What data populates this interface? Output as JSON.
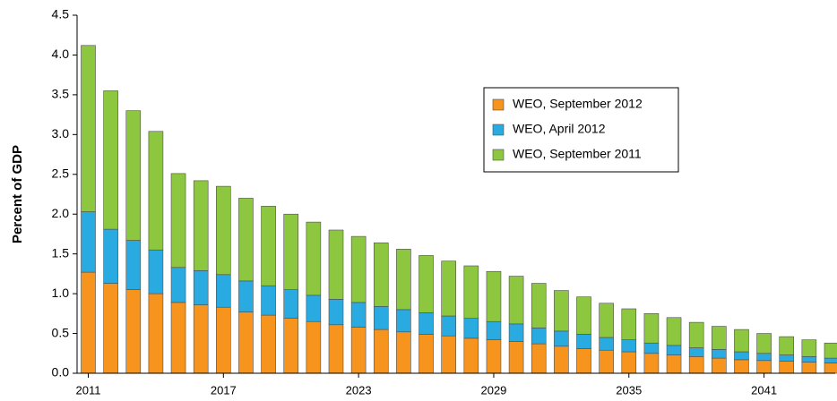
{
  "chart_data": {
    "type": "stacked_bar",
    "y_label": "Percent of GDP",
    "categories": [
      "2011",
      null,
      null,
      null,
      null,
      null,
      "2017",
      null,
      null,
      null,
      null,
      null,
      "2023",
      null,
      null,
      null,
      null,
      null,
      "2029",
      null,
      null,
      null,
      null,
      null,
      "2035",
      null,
      null,
      null,
      null,
      null,
      "2041",
      null,
      null,
      null
    ],
    "series": [
      {
        "name": "WEO, September 2012",
        "color": "#f7941d",
        "values": [
          1.27,
          1.13,
          1.05,
          1.0,
          0.89,
          0.86,
          0.83,
          0.77,
          0.73,
          0.69,
          0.65,
          0.61,
          0.58,
          0.55,
          0.52,
          0.49,
          0.47,
          0.44,
          0.42,
          0.4,
          0.37,
          0.34,
          0.31,
          0.29,
          0.27,
          0.25,
          0.23,
          0.21,
          0.19,
          0.17,
          0.16,
          0.15,
          0.14,
          0.13
        ]
      },
      {
        "name": "WEO, April 2012",
        "color": "#29abe2",
        "values": [
          0.76,
          0.68,
          0.62,
          0.55,
          0.44,
          0.43,
          0.41,
          0.39,
          0.37,
          0.36,
          0.33,
          0.32,
          0.31,
          0.29,
          0.28,
          0.27,
          0.25,
          0.25,
          0.23,
          0.22,
          0.2,
          0.19,
          0.18,
          0.16,
          0.15,
          0.13,
          0.12,
          0.11,
          0.11,
          0.1,
          0.09,
          0.08,
          0.07,
          0.06
        ]
      },
      {
        "name": "WEO, September 2011",
        "color": "#8dc63f",
        "values": [
          2.09,
          1.74,
          1.63,
          1.49,
          1.18,
          1.13,
          1.11,
          1.04,
          1.0,
          0.95,
          0.92,
          0.87,
          0.83,
          0.8,
          0.76,
          0.72,
          0.69,
          0.66,
          0.63,
          0.6,
          0.56,
          0.51,
          0.47,
          0.43,
          0.39,
          0.37,
          0.35,
          0.32,
          0.29,
          0.28,
          0.25,
          0.23,
          0.21,
          0.19
        ]
      }
    ],
    "ylim": [
      0,
      4.5
    ],
    "yticks": [
      {
        "value": 0,
        "label": "0.0"
      },
      0.5,
      {
        "value": 1,
        "label": "1.0"
      },
      1.5,
      {
        "value": 2,
        "label": "2.0"
      },
      2.5,
      {
        "value": 3,
        "label": "3.0"
      },
      3.5,
      {
        "value": 4,
        "label": "4.0"
      },
      4.5
    ],
    "legend": "upper right",
    "grid": false
  }
}
